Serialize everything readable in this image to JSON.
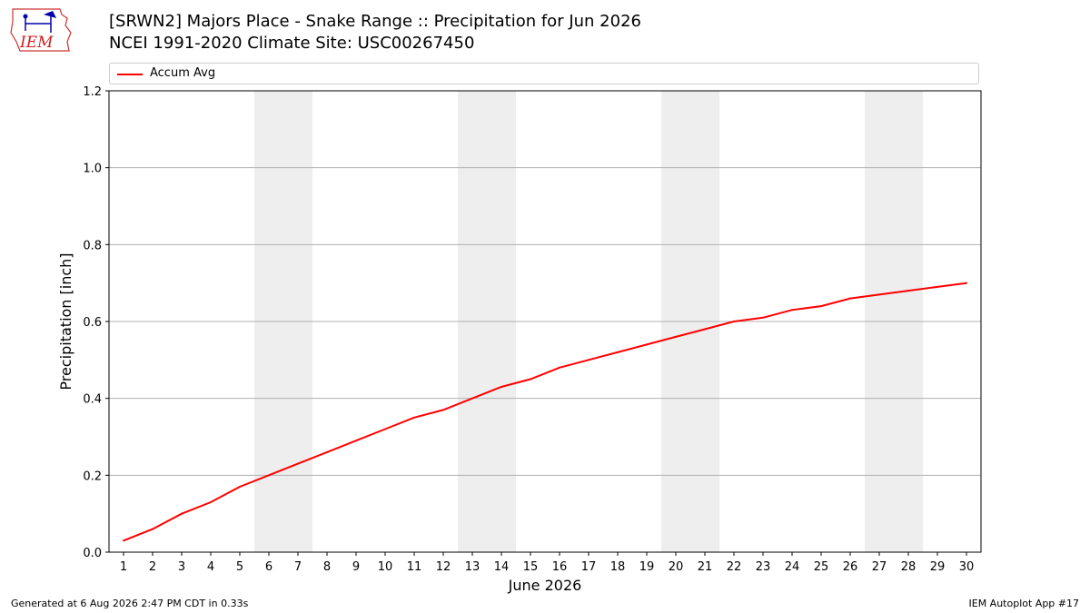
{
  "header": {
    "title_line1": "[SRWN2] Majors Place - Snake Range :: Precipitation for Jun 2026",
    "title_line2": "NCEI 1991-2020 Climate Site: USC00267450"
  },
  "logo": {
    "text": "IEM",
    "icon": "iem-weather-logo"
  },
  "footer": {
    "left": "Generated at 6 Aug 2026 2:47 PM CDT in 0.33s",
    "right": "IEM Autoplot App #17"
  },
  "colors": {
    "series": "#ff0000",
    "weekend": "#eeeeee",
    "grid": "#b0b0b0"
  },
  "chart_data": {
    "type": "line",
    "title": "[SRWN2] Majors Place - Snake Range :: Precipitation for Jun 2026",
    "xlabel": "June 2026",
    "ylabel": "Precipitation [inch]",
    "xlim": [
      0.5,
      30.5
    ],
    "ylim": [
      0,
      1.2
    ],
    "yticks": [
      0.0,
      0.2,
      0.4,
      0.6,
      0.8,
      1.0,
      1.2
    ],
    "ytick_labels": [
      "0.0",
      "0.2",
      "0.4",
      "0.6",
      "0.8",
      "1.0",
      "1.2"
    ],
    "xticks": [
      1,
      2,
      3,
      4,
      5,
      6,
      7,
      8,
      9,
      10,
      11,
      12,
      13,
      14,
      15,
      16,
      17,
      18,
      19,
      20,
      21,
      22,
      23,
      24,
      25,
      26,
      27,
      28,
      29,
      30
    ],
    "grid": "horizontal",
    "legend_position": "top",
    "weekend_bands": [
      [
        6,
        7
      ],
      [
        13,
        14
      ],
      [
        20,
        21
      ],
      [
        27,
        28
      ]
    ],
    "series": [
      {
        "name": "Accum Avg",
        "x": [
          1,
          2,
          3,
          4,
          5,
          6,
          7,
          8,
          9,
          10,
          11,
          12,
          13,
          14,
          15,
          16,
          17,
          18,
          19,
          20,
          21,
          22,
          23,
          24,
          25,
          26,
          27,
          28,
          29,
          30
        ],
        "values": [
          0.03,
          0.06,
          0.1,
          0.13,
          0.17,
          0.2,
          0.23,
          0.26,
          0.29,
          0.32,
          0.35,
          0.37,
          0.4,
          0.43,
          0.45,
          0.48,
          0.5,
          0.52,
          0.54,
          0.56,
          0.58,
          0.6,
          0.61,
          0.63,
          0.64,
          0.66,
          0.67,
          0.68,
          0.69,
          0.7
        ]
      }
    ]
  }
}
